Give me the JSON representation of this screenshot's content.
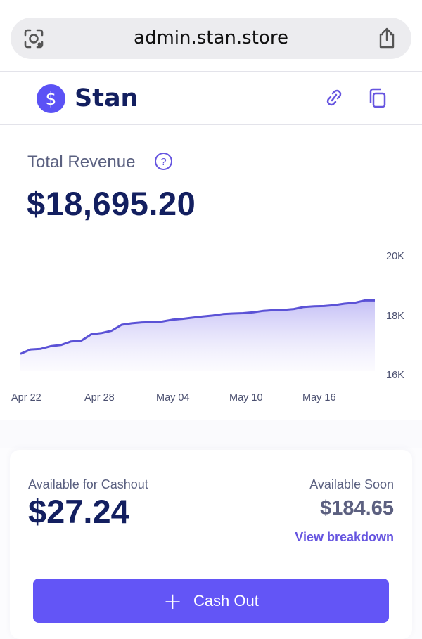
{
  "browser": {
    "url": "admin.stan.store",
    "left_icon": "lens-icon",
    "right_icon": "share-icon"
  },
  "header": {
    "brand": "Stan",
    "logo_icon": "dollar-logo-icon",
    "actions": [
      "link-icon",
      "copy-icon"
    ]
  },
  "revenue": {
    "label": "Total Revenue",
    "help_icon": "help-icon",
    "value": "$18,695.20"
  },
  "chart_data": {
    "type": "area",
    "x_labels": [
      "Apr 22",
      "Apr 28",
      "May 04",
      "May 10",
      "May 16"
    ],
    "y_ticks": [
      "20K",
      "18K",
      "16K"
    ],
    "ylim": [
      16000,
      20000
    ],
    "grid": false,
    "color": "#5b52d6",
    "values": [
      16700,
      16850,
      16870,
      16960,
      17000,
      17120,
      17140,
      17360,
      17400,
      17480,
      17680,
      17730,
      17760,
      17770,
      17790,
      17850,
      17880,
      17920,
      17960,
      17990,
      18040,
      18060,
      18070,
      18100,
      18150,
      18170,
      18180,
      18210,
      18280,
      18300,
      18310,
      18340,
      18390,
      18420,
      18500,
      18500
    ]
  },
  "cashout": {
    "available_label": "Available for Cashout",
    "available_value": "$27.24",
    "soon_label": "Available Soon",
    "soon_value": "$184.65",
    "breakdown_label": "View breakdown",
    "button_label": "Cash Out",
    "button_icon": "plus-icon"
  },
  "colors": {
    "accent": "#6355f6",
    "navy_text": "#131f60"
  }
}
